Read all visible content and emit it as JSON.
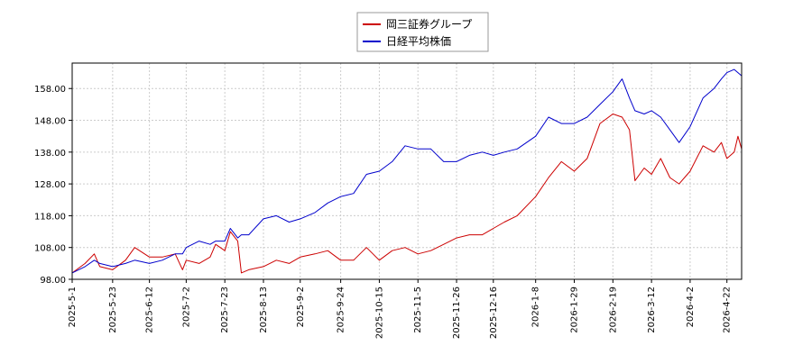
{
  "chart_data": {
    "type": "line",
    "legend_placement": "top-center",
    "grid": true,
    "ylim": [
      98,
      166
    ],
    "yticks": [
      "98.00",
      "108.00",
      "118.00",
      "128.00",
      "138.00",
      "148.00",
      "158.00"
    ],
    "x_start": "2025-5-1",
    "x_end": "2026-4-30",
    "xticks": [
      "2025-5-1",
      "2025-5-23",
      "2025-6-12",
      "2025-7-2",
      "2025-7-23",
      "2025-8-13",
      "2025-9-2",
      "2025-9-24",
      "2025-10-15",
      "2025-11-5",
      "2025-11-26",
      "2025-12-16",
      "2026-1-8",
      "2026-1-29",
      "2026-2-19",
      "2026-3-12",
      "2026-4-2",
      "2026-4-22"
    ],
    "series": [
      {
        "name": "岡三証券グループ",
        "color": "#cc0000",
        "points": [
          [
            "2025-5-1",
            100
          ],
          [
            "2025-5-8",
            103
          ],
          [
            "2025-5-13",
            106
          ],
          [
            "2025-5-16",
            102
          ],
          [
            "2025-5-23",
            101
          ],
          [
            "2025-5-30",
            104
          ],
          [
            "2025-6-4",
            108
          ],
          [
            "2025-6-12",
            105
          ],
          [
            "2025-6-19",
            105
          ],
          [
            "2025-6-26",
            106
          ],
          [
            "2025-6-30",
            101
          ],
          [
            "2025-7-2",
            104
          ],
          [
            "2025-7-9",
            103
          ],
          [
            "2025-7-15",
            105
          ],
          [
            "2025-7-18",
            109
          ],
          [
            "2025-7-23",
            107
          ],
          [
            "2025-7-26",
            113
          ],
          [
            "2025-7-30",
            110
          ],
          [
            "2025-8-1",
            100
          ],
          [
            "2025-8-5",
            101
          ],
          [
            "2025-8-13",
            102
          ],
          [
            "2025-8-20",
            104
          ],
          [
            "2025-8-27",
            103
          ],
          [
            "2025-9-2",
            105
          ],
          [
            "2025-9-10",
            106
          ],
          [
            "2025-9-17",
            107
          ],
          [
            "2025-9-24",
            104
          ],
          [
            "2025-10-1",
            104
          ],
          [
            "2025-10-8",
            108
          ],
          [
            "2025-10-15",
            104
          ],
          [
            "2025-10-22",
            107
          ],
          [
            "2025-10-29",
            108
          ],
          [
            "2025-11-5",
            106
          ],
          [
            "2025-11-12",
            107
          ],
          [
            "2025-11-19",
            109
          ],
          [
            "2025-11-26",
            111
          ],
          [
            "2025-12-3",
            112
          ],
          [
            "2025-12-10",
            112
          ],
          [
            "2025-12-16",
            114
          ],
          [
            "2025-12-22",
            116
          ],
          [
            "2025-12-29",
            118
          ],
          [
            "2026-1-8",
            124
          ],
          [
            "2026-1-15",
            130
          ],
          [
            "2026-1-22",
            135
          ],
          [
            "2026-1-29",
            132
          ],
          [
            "2026-2-5",
            136
          ],
          [
            "2026-2-12",
            147
          ],
          [
            "2026-2-19",
            150
          ],
          [
            "2026-2-24",
            149
          ],
          [
            "2026-2-28",
            145
          ],
          [
            "2026-3-3",
            129
          ],
          [
            "2026-3-8",
            133
          ],
          [
            "2026-3-12",
            131
          ],
          [
            "2026-3-17",
            136
          ],
          [
            "2026-3-22",
            130
          ],
          [
            "2026-3-27",
            128
          ],
          [
            "2026-4-2",
            132
          ],
          [
            "2026-4-9",
            140
          ],
          [
            "2026-4-15",
            138
          ],
          [
            "2026-4-19",
            141
          ],
          [
            "2026-4-22",
            136
          ],
          [
            "2026-4-26",
            138
          ],
          [
            "2026-4-28",
            143
          ],
          [
            "2026-4-30",
            139
          ]
        ]
      },
      {
        "name": "日経平均株価",
        "color": "#0000cc",
        "points": [
          [
            "2025-5-1",
            100
          ],
          [
            "2025-5-8",
            102
          ],
          [
            "2025-5-13",
            104
          ],
          [
            "2025-5-16",
            103
          ],
          [
            "2025-5-23",
            102
          ],
          [
            "2025-5-30",
            103
          ],
          [
            "2025-6-4",
            104
          ],
          [
            "2025-6-12",
            103
          ],
          [
            "2025-6-19",
            104
          ],
          [
            "2025-6-26",
            106
          ],
          [
            "2025-6-30",
            106
          ],
          [
            "2025-7-2",
            108
          ],
          [
            "2025-7-9",
            110
          ],
          [
            "2025-7-15",
            109
          ],
          [
            "2025-7-18",
            110
          ],
          [
            "2025-7-23",
            110
          ],
          [
            "2025-7-26",
            114
          ],
          [
            "2025-7-30",
            111
          ],
          [
            "2025-8-1",
            112
          ],
          [
            "2025-8-5",
            112
          ],
          [
            "2025-8-13",
            117
          ],
          [
            "2025-8-20",
            118
          ],
          [
            "2025-8-27",
            116
          ],
          [
            "2025-9-2",
            117
          ],
          [
            "2025-9-10",
            119
          ],
          [
            "2025-9-17",
            122
          ],
          [
            "2025-9-24",
            124
          ],
          [
            "2025-10-1",
            125
          ],
          [
            "2025-10-8",
            131
          ],
          [
            "2025-10-15",
            132
          ],
          [
            "2025-10-22",
            135
          ],
          [
            "2025-10-29",
            140
          ],
          [
            "2025-11-5",
            139
          ],
          [
            "2025-11-12",
            139
          ],
          [
            "2025-11-19",
            135
          ],
          [
            "2025-11-26",
            135
          ],
          [
            "2025-12-3",
            137
          ],
          [
            "2025-12-10",
            138
          ],
          [
            "2025-12-16",
            137
          ],
          [
            "2025-12-22",
            138
          ],
          [
            "2025-12-29",
            139
          ],
          [
            "2026-1-8",
            143
          ],
          [
            "2026-1-15",
            149
          ],
          [
            "2026-1-22",
            147
          ],
          [
            "2026-1-29",
            147
          ],
          [
            "2026-2-5",
            149
          ],
          [
            "2026-2-12",
            153
          ],
          [
            "2026-2-19",
            157
          ],
          [
            "2026-2-24",
            161
          ],
          [
            "2026-2-28",
            155
          ],
          [
            "2026-3-3",
            151
          ],
          [
            "2026-3-8",
            150
          ],
          [
            "2026-3-12",
            151
          ],
          [
            "2026-3-17",
            149
          ],
          [
            "2026-3-22",
            145
          ],
          [
            "2026-3-27",
            141
          ],
          [
            "2026-4-2",
            146
          ],
          [
            "2026-4-9",
            155
          ],
          [
            "2026-4-15",
            158
          ],
          [
            "2026-4-19",
            161
          ],
          [
            "2026-4-22",
            163
          ],
          [
            "2026-4-26",
            164
          ],
          [
            "2026-4-28",
            163
          ],
          [
            "2026-4-30",
            162
          ]
        ]
      }
    ]
  }
}
